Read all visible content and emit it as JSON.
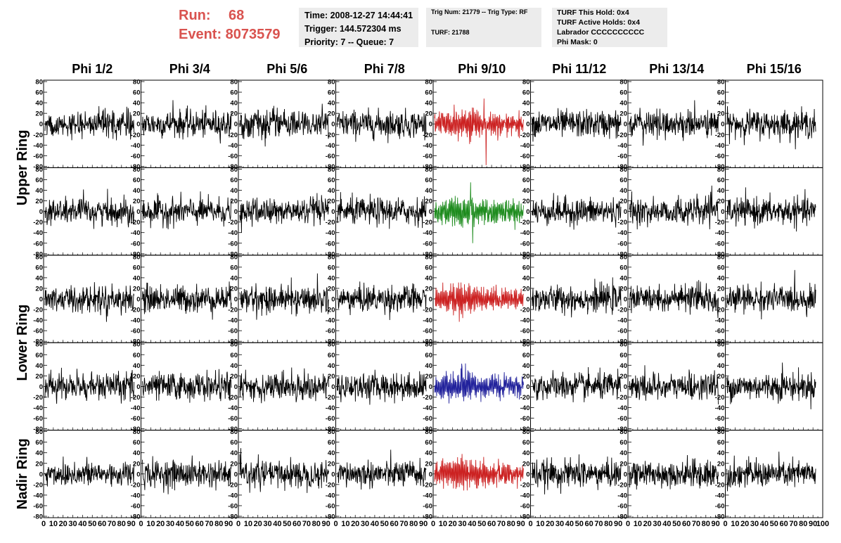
{
  "header": {
    "run_label": "Run:",
    "run_value": "68",
    "event_label": "Event:",
    "event_value": "8073579",
    "event_line": "Event: 8073579"
  },
  "time_box": {
    "time": "Time: 2008-12-27 14:44:41",
    "trigger": "Trigger: 144.572304 ms",
    "priority": "Priority: 7 -- Queue: 7"
  },
  "trig_box": {
    "trig_line": "Trig Num: 21779 -- Trig Type: RF",
    "turf": "TURF: 21788"
  },
  "turf_box": {
    "this_hold": "TURF This Hold: 0x4",
    "active_holds": "TURF Active Holds: 0x4",
    "labrador": "Labrador CCCCCCCCCC",
    "phi_mask": "Phi Mask: 0"
  },
  "colors": {
    "header_red": "#d9534f",
    "trace_default": "#000000",
    "trace_red": "#cc2222",
    "trace_green": "#1e8c1e",
    "trace_blue": "#22229c",
    "box_bg": "#ececec"
  },
  "chart_data": {
    "type": "line",
    "grid": false,
    "columns": [
      "Phi 1/2",
      "Phi 3/4",
      "Phi 5/6",
      "Phi 7/8",
      "Phi 9/10",
      "Phi 11/12",
      "Phi 13/14",
      "Phi 15/16"
    ],
    "row_labels": [
      {
        "label": "Upper Ring",
        "rows": [
          0,
          1
        ]
      },
      {
        "label": "Lower Ring",
        "rows": [
          2,
          3
        ]
      },
      {
        "label": "Nadir Ring",
        "rows": [
          4
        ]
      }
    ],
    "rows": 5,
    "ylim": [
      -80,
      80
    ],
    "yticks": [
      80,
      60,
      40,
      20,
      0,
      -20,
      -40,
      -60,
      -80
    ],
    "xlim": [
      0,
      100
    ],
    "xticks": [
      0,
      10,
      20,
      30,
      40,
      50,
      60,
      70,
      80,
      90,
      100
    ],
    "samples": 260,
    "highlighted_column": 4,
    "highlight_colors": [
      "red",
      "green",
      "red",
      "blue",
      "red"
    ],
    "typical_amplitude": {
      "normal_panels": 15,
      "highlighted_panels": 28
    },
    "peaks": {
      "upper_row0_phi3_4": 45,
      "upper_row0_phi9_10": 48,
      "upper_row0_phi9_10_min": -78,
      "upper_row1_phi9_10": 55,
      "upper_row1_phi9_10_min": -60,
      "lower_row3_phi9_10": 43,
      "lower_row3_phi15_16": 45,
      "nadir_phi11_12": 37
    }
  }
}
